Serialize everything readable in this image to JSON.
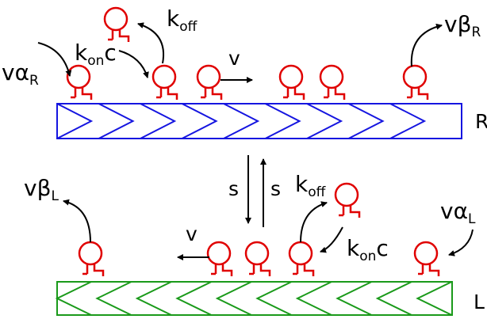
{
  "colors": {
    "motor": "#e00000",
    "right_track": "#1515e0",
    "left_track": "#1a9a1a",
    "arrow": "#000000"
  },
  "labels": {
    "right_track": "R",
    "left_track": "L",
    "s_down": "s",
    "s_up": "s",
    "top": {
      "attach_base": "vα",
      "attach_sub": "R",
      "kon_base": "k",
      "kon_sub": "on",
      "kon_c": "c",
      "koff_base": "k",
      "koff_sub": "off",
      "velocity": "v",
      "detach_base": "vβ",
      "detach_sub": "R"
    },
    "bottom": {
      "detach_base": "vβ",
      "detach_sub": "L",
      "velocity": "v",
      "koff_base": "k",
      "koff_sub": "off",
      "kon_base": "k",
      "kon_sub": "on",
      "kon_c": "c",
      "attach_base": "vα",
      "attach_sub": "L"
    }
  },
  "icons": {
    "motor": "molecular-motor-icon",
    "track_segment": "chevron-icon"
  }
}
